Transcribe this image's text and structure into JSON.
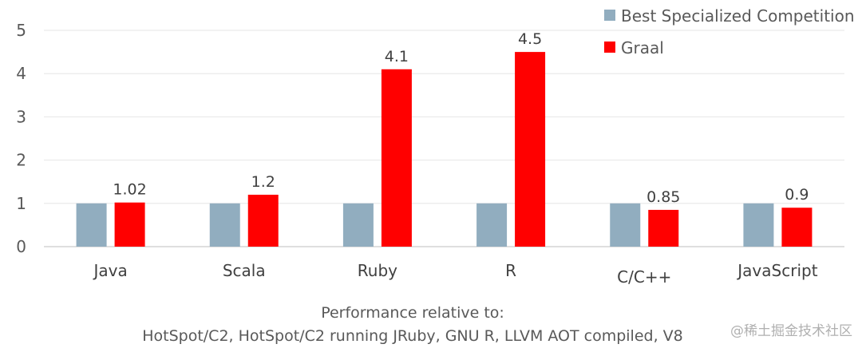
{
  "chart_data": {
    "type": "bar",
    "categories": [
      "Java",
      "Scala",
      "Ruby",
      "R",
      "C/C++",
      "JavaScript"
    ],
    "series": [
      {
        "name": "Best Specialized Competition",
        "color": "#91adbf",
        "values": [
          1,
          1,
          1,
          1,
          1,
          1
        ]
      },
      {
        "name": "Graal",
        "color": "#ff0000",
        "values": [
          1.02,
          1.2,
          4.1,
          4.5,
          0.85,
          0.9
        ],
        "labels": [
          "1.02",
          "1.2",
          "4.1",
          "4.5",
          "0.85",
          "0.9"
        ]
      }
    ],
    "ylim": [
      0,
      5
    ],
    "yticks": [
      "0",
      "1",
      "2",
      "3",
      "4",
      "5"
    ],
    "grid": true,
    "legend_position": "top-right",
    "caption": [
      "Performance relative to:",
      "HotSpot/C2, HotSpot/C2 running JRuby, GNU R, LLVM AOT compiled, V8"
    ]
  },
  "watermark": "@稀土掘金技术社区"
}
